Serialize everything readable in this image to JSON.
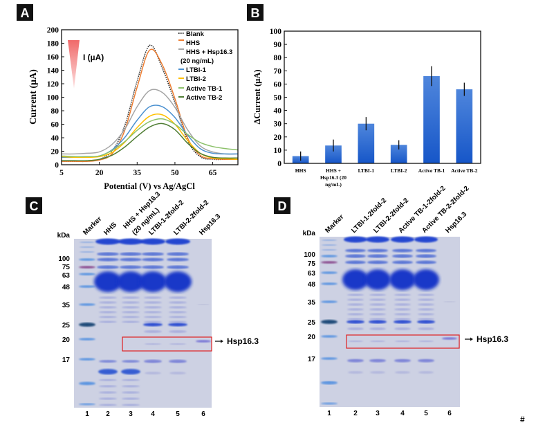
{
  "panels": {
    "a": "A",
    "b": "B",
    "c": "C",
    "d": "D"
  },
  "chart_data": [
    {
      "type": "line",
      "panel": "A",
      "xlabel": "Potential (V) vs Ag/AgCl",
      "ylabel": "Current  (µA)",
      "xlim": [
        5,
        75
      ],
      "ylim": [
        0,
        200
      ],
      "xticks": [
        5,
        20,
        35,
        50,
        65
      ],
      "yticks": [
        0,
        20,
        40,
        60,
        80,
        100,
        120,
        140,
        160,
        180,
        200
      ],
      "grid": false,
      "legend_position": "top-right",
      "annotation": "I (µA)",
      "x": [
        5,
        10,
        15,
        20,
        25,
        30,
        35,
        40,
        45,
        50,
        55,
        60,
        65,
        70,
        75
      ],
      "series": [
        {
          "name": "Blank",
          "color": "#222222",
          "style": "dotted",
          "values": [
            5,
            5,
            5,
            8,
            20,
            57,
            124,
            177,
            143,
            92,
            36,
            12,
            8,
            8,
            8
          ]
        },
        {
          "name": "HHS",
          "color": "#ed7d31",
          "style": "solid",
          "values": [
            5,
            5,
            5,
            7,
            16,
            50,
            115,
            170,
            148,
            98,
            40,
            14,
            9,
            8,
            8
          ]
        },
        {
          "name": "HHS + Hsp16.3",
          "name_line2": "(20 ng/mL)",
          "color": "#a5a5a5",
          "style": "solid",
          "values": [
            16,
            16,
            17,
            19,
            30,
            52,
            86,
            110,
            107,
            85,
            52,
            28,
            19,
            16,
            16
          ]
        },
        {
          "name": "LTBI-1",
          "color": "#4a90d0",
          "style": "solid",
          "values": [
            11,
            11,
            12,
            13,
            22,
            40,
            66,
            86,
            86,
            70,
            44,
            24,
            17,
            16,
            16
          ]
        },
        {
          "name": "LTBI-2",
          "color": "#ffc000",
          "style": "solid",
          "values": [
            12,
            11,
            11,
            12,
            18,
            33,
            55,
            72,
            74,
            60,
            36,
            17,
            10,
            9,
            8
          ]
        },
        {
          "name": "Active TB-1",
          "color": "#8cc16a",
          "style": "solid",
          "values": [
            13,
            12,
            12,
            13,
            21,
            34,
            51,
            64,
            68,
            60,
            45,
            33,
            27,
            24,
            22
          ]
        },
        {
          "name": "Active TB-2",
          "color": "#4f7d34",
          "style": "solid",
          "values": [
            6,
            6,
            6,
            8,
            14,
            26,
            42,
            56,
            61,
            52,
            32,
            17,
            11,
            10,
            10
          ]
        }
      ]
    },
    {
      "type": "bar",
      "panel": "B",
      "ylabel": "ΔCurrent (µA)",
      "ylim": [
        0,
        100
      ],
      "yticks": [
        0,
        10,
        20,
        30,
        40,
        50,
        60,
        70,
        80,
        90,
        100
      ],
      "grid": false,
      "bar_color": "#1f62d0",
      "categories": [
        [
          "HHS"
        ],
        [
          "HHS +",
          "Hsp16.3 (20",
          "ng/mL)"
        ],
        [
          "LTBI-1"
        ],
        [
          "LTBI-2"
        ],
        [
          "Active TB-1"
        ],
        [
          "Active TB-2"
        ]
      ],
      "values": [
        5.5,
        13.5,
        30,
        14,
        66,
        56
      ],
      "errors": [
        3.5,
        4.5,
        5,
        3.5,
        7.5,
        5
      ]
    }
  ],
  "gels": [
    {
      "panel": "C",
      "kda_label": "kDa",
      "markers": [
        "100",
        "75",
        "63",
        "48",
        "35",
        "25",
        "20",
        "17"
      ],
      "lane_labels": [
        "Marker",
        "HHS",
        "HHS + Hsp16.3",
        "LTBI-1-2fold-2",
        "LTBI-2-2fold-2",
        "Hsp16.3"
      ],
      "lane_label_line2": "(20 ng/mL)",
      "lane_numbers": [
        "1",
        "2",
        "3",
        "4",
        "5",
        "6"
      ],
      "arrow_label": "Hsp16.3"
    },
    {
      "panel": "D",
      "kda_label": "kDa",
      "markers": [
        "100",
        "75",
        "63",
        "48",
        "35",
        "25",
        "20",
        "17"
      ],
      "lane_labels": [
        "Marker",
        "LTBI-1-2fold-2",
        "LTBI-2-2fold-2",
        "Active TB-1-2fold-2",
        "Active TB-2-2fold-2",
        "Hsp16.3"
      ],
      "lane_numbers": [
        "1",
        "2",
        "3",
        "4",
        "5",
        "6"
      ],
      "arrow_label": "Hsp16.3"
    }
  ],
  "footnote": "#"
}
